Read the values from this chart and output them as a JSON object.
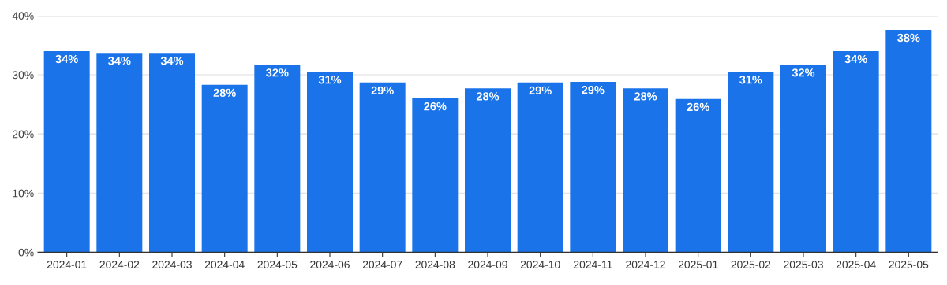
{
  "chart_data": {
    "type": "bar",
    "categories": [
      "2024-01",
      "2024-02",
      "2024-03",
      "2024-04",
      "2024-05",
      "2024-06",
      "2024-07",
      "2024-08",
      "2024-09",
      "2024-10",
      "2024-11",
      "2024-12",
      "2025-01",
      "2025-02",
      "2025-03",
      "2025-04",
      "2025-05"
    ],
    "values": [
      34.0,
      33.7,
      33.7,
      28.3,
      31.7,
      30.5,
      28.7,
      26.0,
      27.7,
      28.7,
      28.8,
      27.7,
      25.9,
      30.5,
      31.7,
      34.0,
      37.6
    ],
    "value_labels": [
      "34%",
      "34%",
      "34%",
      "28%",
      "32%",
      "31%",
      "29%",
      "26%",
      "28%",
      "29%",
      "29%",
      "28%",
      "26%",
      "31%",
      "32%",
      "34%",
      "38%"
    ],
    "color": "#1a73e8",
    "ylim": [
      0,
      40
    ],
    "yticks": [
      {
        "value": 0,
        "label": "0%"
      },
      {
        "value": 10,
        "label": "10%"
      },
      {
        "value": 20,
        "label": "20%"
      },
      {
        "value": 30,
        "label": "30%"
      },
      {
        "value": 40,
        "label": "40%"
      }
    ],
    "grid": "y",
    "legend": false
  }
}
